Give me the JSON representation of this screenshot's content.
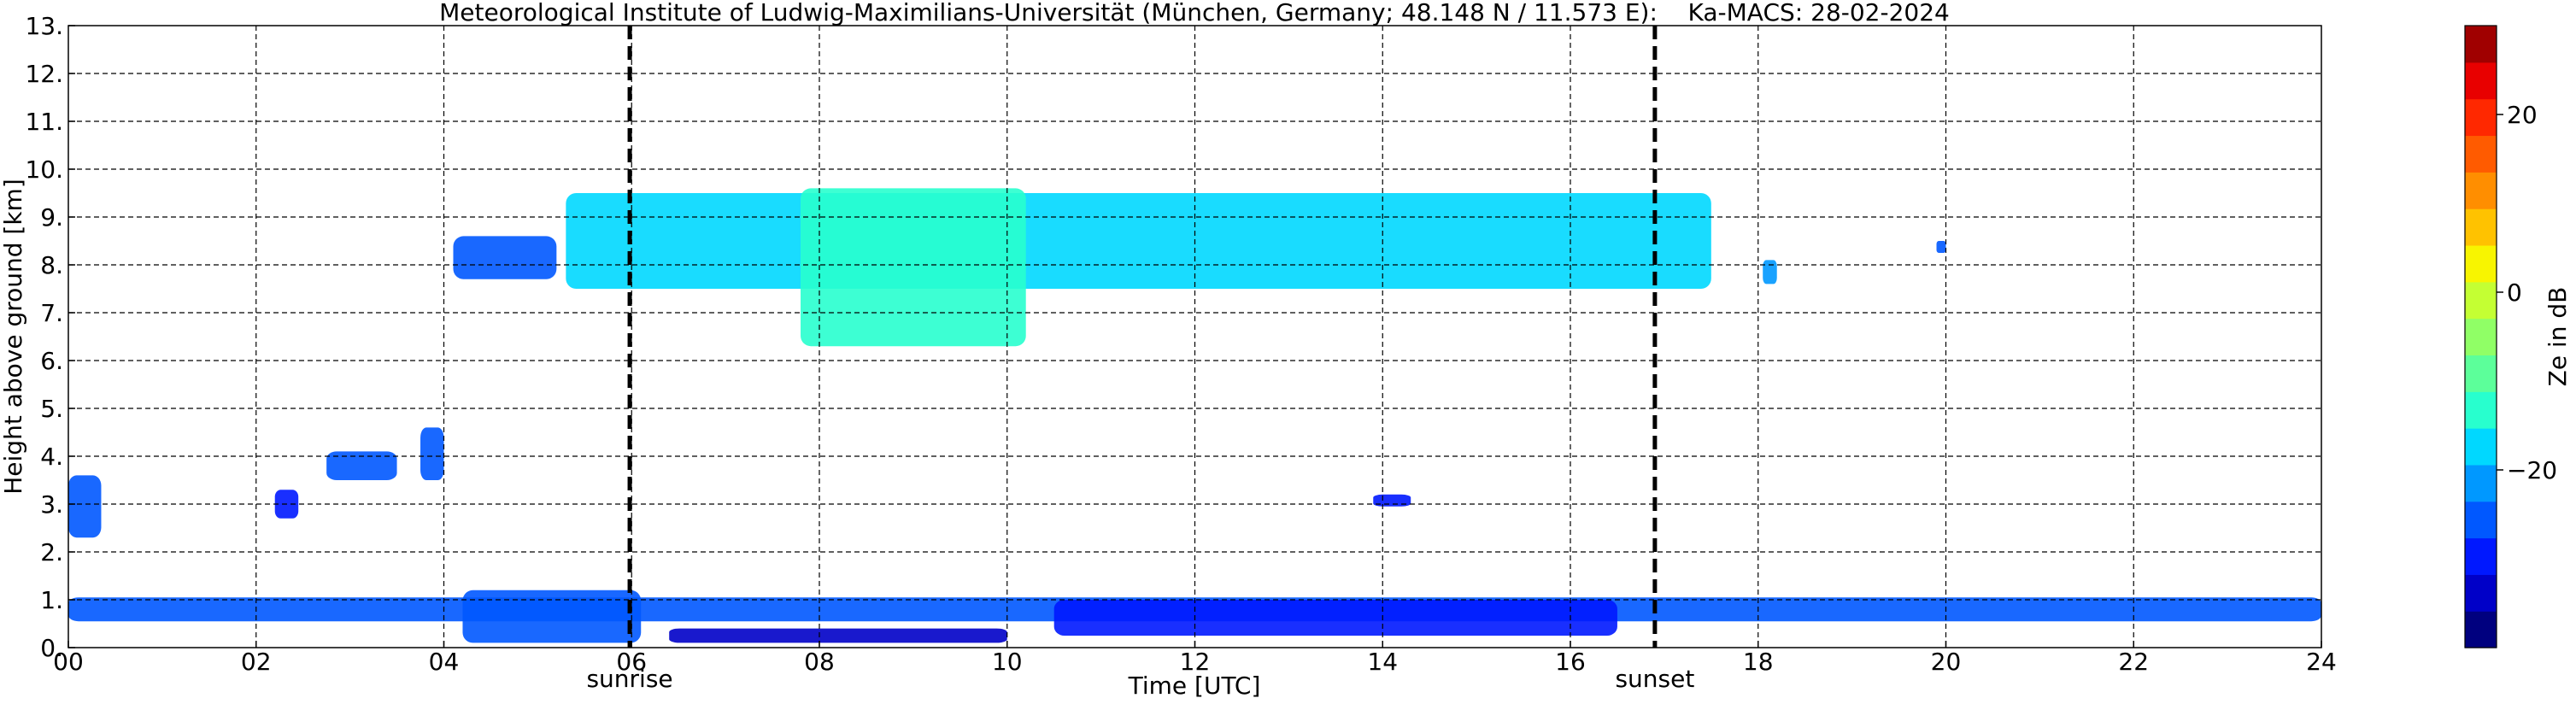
{
  "chart_data": {
    "type": "heatmap",
    "title": "Meteorological Institute of Ludwig-Maximilians-Universität (München, Germany; 48.148 N / 11.573 E):    Ka-MACS: 28-02-2024",
    "xlabel": "Time [UTC]",
    "ylabel": "Height above ground [km]",
    "xlim": [
      0,
      24
    ],
    "ylim": [
      0,
      13
    ],
    "x_ticks": [
      {
        "v": 0,
        "label": "00"
      },
      {
        "v": 2,
        "label": "02"
      },
      {
        "v": 4,
        "label": "04"
      },
      {
        "v": 6,
        "label": "06"
      },
      {
        "v": 8,
        "label": "08"
      },
      {
        "v": 10,
        "label": "10"
      },
      {
        "v": 12,
        "label": "12"
      },
      {
        "v": 14,
        "label": "14"
      },
      {
        "v": 16,
        "label": "16"
      },
      {
        "v": 18,
        "label": "18"
      },
      {
        "v": 20,
        "label": "20"
      },
      {
        "v": 22,
        "label": "22"
      },
      {
        "v": 24,
        "label": "24"
      }
    ],
    "y_ticks": [
      {
        "v": 0,
        "label": "0."
      },
      {
        "v": 1,
        "label": "1."
      },
      {
        "v": 2,
        "label": "2."
      },
      {
        "v": 3,
        "label": "3."
      },
      {
        "v": 4,
        "label": "4."
      },
      {
        "v": 5,
        "label": "5."
      },
      {
        "v": 6,
        "label": "6."
      },
      {
        "v": 7,
        "label": "7."
      },
      {
        "v": 8,
        "label": "8."
      },
      {
        "v": 9,
        "label": "9."
      },
      {
        "v": 10,
        "label": "10."
      },
      {
        "v": 11,
        "label": "11."
      },
      {
        "v": 12,
        "label": "12."
      },
      {
        "v": 13,
        "label": "13."
      }
    ],
    "grid": true,
    "markers": [
      {
        "x": 5.98,
        "label": "sunrise"
      },
      {
        "x": 16.9,
        "label": "sunset"
      }
    ],
    "colorbar": {
      "label": "Ze in dB",
      "range": [
        -40,
        30
      ],
      "ticks": [
        {
          "v": -20,
          "label": "−20"
        },
        {
          "v": 0,
          "label": "0"
        },
        {
          "v": 20,
          "label": "20"
        }
      ],
      "colors": [
        "#00007f",
        "#0000c8",
        "#0018ff",
        "#0058ff",
        "#0098ff",
        "#00d8ff",
        "#28ffce",
        "#5cff9a",
        "#90ff66",
        "#c4ff33",
        "#f8f500",
        "#ffc200",
        "#ff8e00",
        "#ff5b00",
        "#ff2800",
        "#e80000",
        "#a00000"
      ]
    },
    "regions": [
      {
        "name": "",
        "t0": 0.0,
        "t1": 24.0,
        "h0": 0.55,
        "h1": 1.05,
        "ze": -26
      },
      {
        "name": "",
        "t0": 4.2,
        "t1": 6.1,
        "h0": 0.1,
        "h1": 1.2,
        "ze": -24
      },
      {
        "name": "",
        "t0": 6.4,
        "t1": 10.0,
        "h0": 0.1,
        "h1": 0.4,
        "ze": -32
      },
      {
        "name": "",
        "t0": 10.5,
        "t1": 16.5,
        "h0": 0.25,
        "h1": 1.0,
        "ze": -28
      },
      {
        "name": "",
        "t0": 5.3,
        "t1": 17.5,
        "h0": 7.5,
        "h1": 9.5,
        "ze": -18
      },
      {
        "name": "",
        "t0": 7.8,
        "t1": 10.2,
        "h0": 6.3,
        "h1": 9.6,
        "ze": -12
      },
      {
        "name": "",
        "t0": 4.1,
        "t1": 5.2,
        "h0": 7.7,
        "h1": 8.6,
        "ze": -25
      },
      {
        "name": "",
        "t0": 0.0,
        "t1": 0.35,
        "h0": 2.3,
        "h1": 3.6,
        "ze": -25
      },
      {
        "name": "",
        "t0": 2.75,
        "t1": 3.5,
        "h0": 3.5,
        "h1": 4.1,
        "ze": -24
      },
      {
        "name": "",
        "t0": 3.75,
        "t1": 4.0,
        "h0": 3.5,
        "h1": 4.6,
        "ze": -24
      },
      {
        "name": "",
        "t0": 2.2,
        "t1": 2.45,
        "h0": 2.7,
        "h1": 3.3,
        "ze": -30
      },
      {
        "name": "",
        "t0": 13.9,
        "t1": 14.3,
        "h0": 2.95,
        "h1": 3.2,
        "ze": -30
      },
      {
        "name": "",
        "t0": 18.05,
        "t1": 18.2,
        "h0": 7.6,
        "h1": 8.1,
        "ze": -22
      },
      {
        "name": "",
        "t0": 19.9,
        "t1": 20.0,
        "h0": 8.25,
        "h1": 8.5,
        "ze": -26
      }
    ]
  }
}
